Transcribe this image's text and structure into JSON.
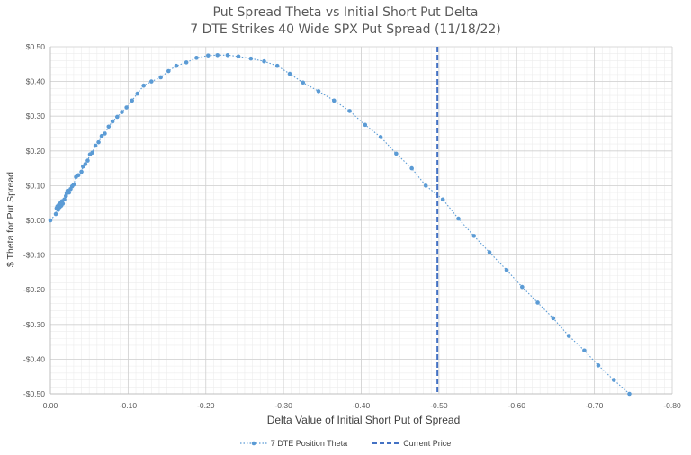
{
  "chart_data": {
    "type": "scatter",
    "title": "Put Spread Theta vs Initial Short Put Delta",
    "subtitle": "7 DTE Strikes 40 Wide SPX Put Spread (11/18/22)",
    "xlabel": "Delta Value of Initial Short Put of Spread",
    "ylabel": "$ Theta for Put Spread",
    "xlim": [
      0,
      -0.8
    ],
    "ylim": [
      -0.5,
      0.5
    ],
    "x_ticks": [
      "0.00",
      "-0.10",
      "-0.20",
      "-0.30",
      "-0.40",
      "-0.50",
      "-0.60",
      "-0.70",
      "-0.80"
    ],
    "y_ticks": [
      "$0.50",
      "$0.40",
      "$0.30",
      "$0.20",
      "$0.10",
      "$0.00",
      "-$0.10",
      "-$0.20",
      "-$0.30",
      "-$0.40",
      "-$0.50"
    ],
    "x_tick_values": [
      0,
      -0.1,
      -0.2,
      -0.3,
      -0.4,
      -0.5,
      -0.6,
      -0.7,
      -0.8
    ],
    "y_tick_values": [
      0.5,
      0.4,
      0.3,
      0.2,
      0.1,
      0,
      -0.1,
      -0.2,
      -0.3,
      -0.4,
      -0.5
    ],
    "grid": true,
    "legend_position": "bottom",
    "series": [
      {
        "name": "7 DTE Position Theta",
        "color": "#5b9bd5",
        "style": "dotted line with markers",
        "points": [
          [
            0.0,
            0.0
          ],
          [
            -0.007,
            0.018
          ],
          [
            -0.008,
            0.035
          ],
          [
            -0.009,
            0.04
          ],
          [
            -0.01,
            0.03
          ],
          [
            -0.011,
            0.045
          ],
          [
            -0.012,
            0.038
          ],
          [
            -0.013,
            0.05
          ],
          [
            -0.014,
            0.042
          ],
          [
            -0.015,
            0.055
          ],
          [
            -0.016,
            0.048
          ],
          [
            -0.018,
            0.06
          ],
          [
            -0.02,
            0.07
          ],
          [
            -0.021,
            0.078
          ],
          [
            -0.022,
            0.085
          ],
          [
            -0.024,
            0.08
          ],
          [
            -0.026,
            0.09
          ],
          [
            -0.028,
            0.098
          ],
          [
            -0.03,
            0.103
          ],
          [
            -0.033,
            0.125
          ],
          [
            -0.036,
            0.13
          ],
          [
            -0.04,
            0.14
          ],
          [
            -0.042,
            0.155
          ],
          [
            -0.045,
            0.162
          ],
          [
            -0.048,
            0.172
          ],
          [
            -0.051,
            0.19
          ],
          [
            -0.054,
            0.195
          ],
          [
            -0.058,
            0.215
          ],
          [
            -0.062,
            0.225
          ],
          [
            -0.066,
            0.243
          ],
          [
            -0.07,
            0.25
          ],
          [
            -0.075,
            0.27
          ],
          [
            -0.08,
            0.285
          ],
          [
            -0.086,
            0.298
          ],
          [
            -0.092,
            0.312
          ],
          [
            -0.098,
            0.325
          ],
          [
            -0.105,
            0.345
          ],
          [
            -0.112,
            0.365
          ],
          [
            -0.12,
            0.388
          ],
          [
            -0.13,
            0.4
          ],
          [
            -0.142,
            0.412
          ],
          [
            -0.152,
            0.43
          ],
          [
            -0.162,
            0.445
          ],
          [
            -0.175,
            0.455
          ],
          [
            -0.188,
            0.468
          ],
          [
            -0.203,
            0.475
          ],
          [
            -0.215,
            0.476
          ],
          [
            -0.228,
            0.476
          ],
          [
            -0.242,
            0.472
          ],
          [
            -0.258,
            0.466
          ],
          [
            -0.275,
            0.458
          ],
          [
            -0.292,
            0.445
          ],
          [
            -0.308,
            0.422
          ],
          [
            -0.325,
            0.397
          ],
          [
            -0.345,
            0.372
          ],
          [
            -0.365,
            0.345
          ],
          [
            -0.385,
            0.315
          ],
          [
            -0.405,
            0.275
          ],
          [
            -0.425,
            0.24
          ],
          [
            -0.445,
            0.192
          ],
          [
            -0.465,
            0.15
          ],
          [
            -0.483,
            0.1
          ],
          [
            -0.505,
            0.06
          ],
          [
            -0.525,
            0.005
          ],
          [
            -0.545,
            -0.045
          ],
          [
            -0.565,
            -0.092
          ],
          [
            -0.587,
            -0.143
          ],
          [
            -0.607,
            -0.192
          ],
          [
            -0.627,
            -0.237
          ],
          [
            -0.647,
            -0.282
          ],
          [
            -0.667,
            -0.333
          ],
          [
            -0.687,
            -0.375
          ],
          [
            -0.705,
            -0.418
          ],
          [
            -0.725,
            -0.46
          ],
          [
            -0.745,
            -0.5
          ]
        ]
      },
      {
        "name": "Current Price",
        "color": "#4472c4",
        "style": "dashed vertical line",
        "x": -0.498
      }
    ]
  }
}
